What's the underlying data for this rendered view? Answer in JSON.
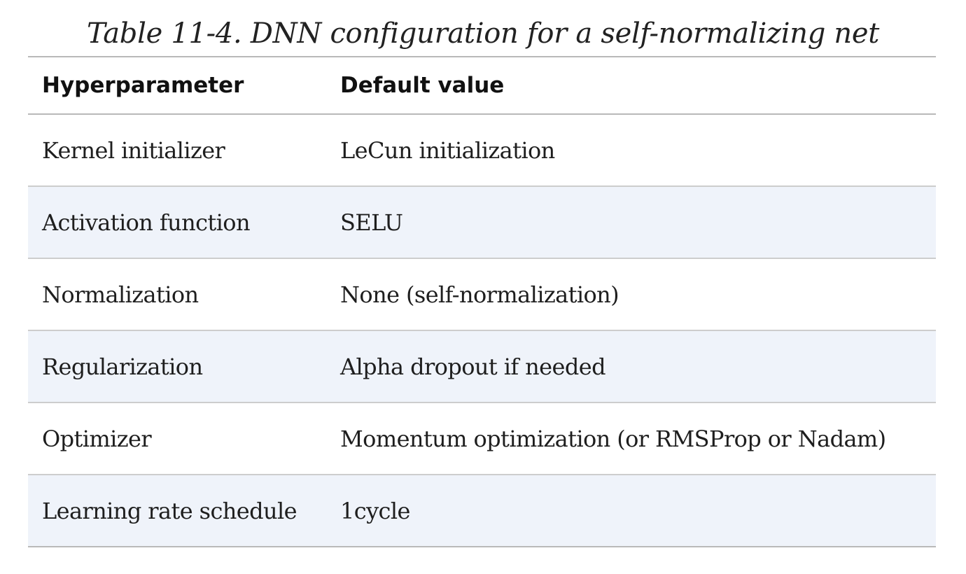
{
  "caption": "Table 11-4. DNN configuration for a self-normalizing net",
  "table": {
    "headers": [
      "Hyperparameter",
      "Default value"
    ],
    "rows": [
      [
        "Kernel initializer",
        "LeCun initialization"
      ],
      [
        "Activation function",
        "SELU"
      ],
      [
        "Normalization",
        "None (self-normalization)"
      ],
      [
        "Regularization",
        "Alpha dropout if needed"
      ],
      [
        "Optimizer",
        "Momentum optimization (or RMSProp or Nadam)"
      ],
      [
        "Learning rate schedule",
        "1cycle"
      ]
    ]
  },
  "colors": {
    "stripe": "#eff3fa",
    "rule": "#b9b9b9",
    "text": "#1e1e1e"
  }
}
